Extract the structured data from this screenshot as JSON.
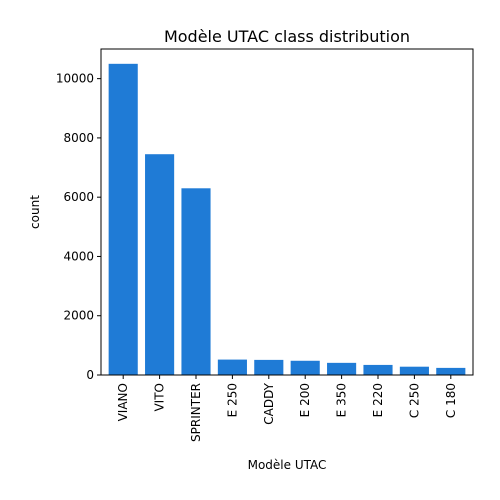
{
  "chart_data": {
    "type": "bar",
    "title": "Modèle UTAC class distribution",
    "xlabel": "Modèle UTAC",
    "ylabel": "count",
    "categories": [
      "VIANO",
      "VITO",
      "SPRINTER",
      "E 250",
      "CADDY",
      "E 200",
      "E 350",
      "E 220",
      "C 250",
      "C 180"
    ],
    "values": [
      10500,
      7450,
      6300,
      520,
      510,
      480,
      410,
      340,
      280,
      240
    ],
    "ylim": [
      0,
      11000
    ],
    "yticks": [
      0,
      2000,
      4000,
      6000,
      8000,
      10000
    ],
    "grid": false,
    "bar_color": "#1f7bd6"
  }
}
